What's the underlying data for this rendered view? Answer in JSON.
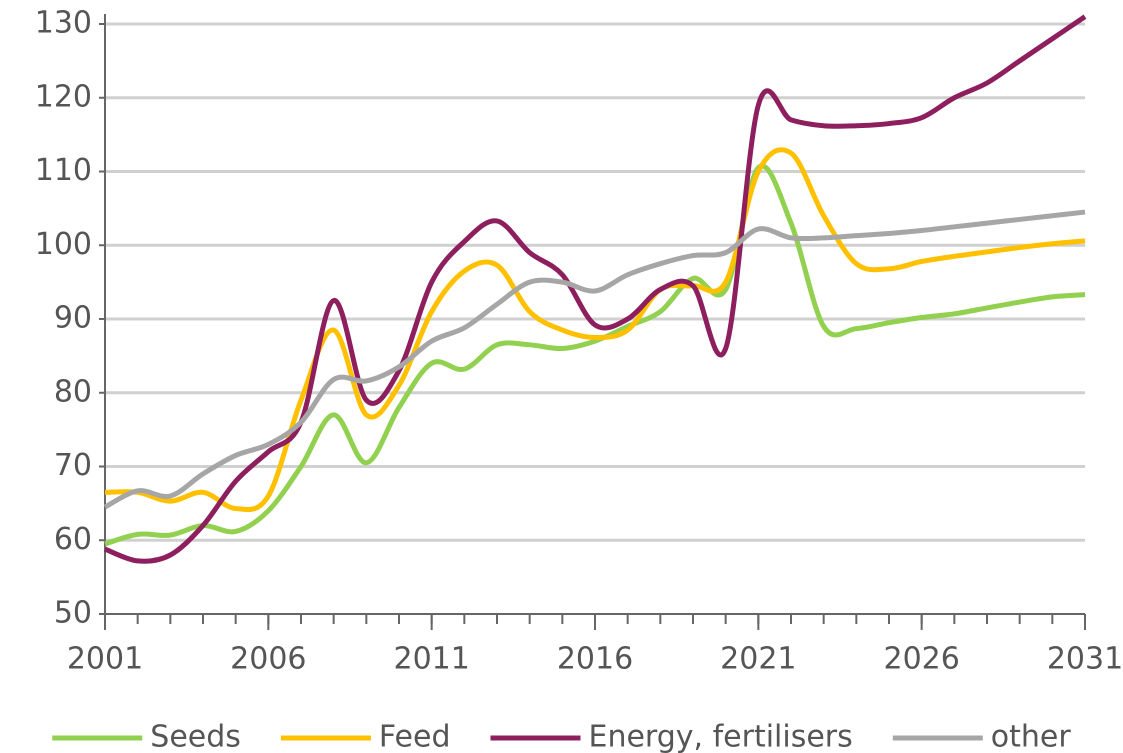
{
  "chart_data": {
    "type": "line",
    "x": [
      2001,
      2002,
      2003,
      2004,
      2005,
      2006,
      2007,
      2008,
      2009,
      2010,
      2011,
      2012,
      2013,
      2014,
      2015,
      2016,
      2017,
      2018,
      2019,
      2020,
      2021,
      2022,
      2023,
      2024,
      2025,
      2026,
      2027,
      2028,
      2029,
      2030,
      2031
    ],
    "xlim": [
      2001,
      2031
    ],
    "xticks": [
      2001,
      2006,
      2011,
      2016,
      2021,
      2026,
      2031
    ],
    "ylim": [
      50,
      130
    ],
    "yticks": [
      50,
      60,
      70,
      80,
      90,
      100,
      110,
      120,
      130
    ],
    "grid": true,
    "legend": "bottom",
    "series": [
      {
        "name": "Seeds",
        "color": "#92d050",
        "values": [
          59.5,
          60.8,
          60.7,
          62,
          61.2,
          64,
          70,
          77,
          70.5,
          78,
          84,
          83.2,
          86.5,
          86.5,
          86,
          87,
          89,
          91,
          95.5,
          94,
          110.5,
          103,
          89,
          88.7,
          89.5,
          90.2,
          90.7,
          91.5,
          92.3,
          93,
          93.3
        ]
      },
      {
        "name": "Feed",
        "color": "#ffc000",
        "values": [
          66.5,
          66.5,
          65.3,
          66.5,
          64.3,
          66,
          79,
          88.5,
          77,
          81,
          91,
          96.5,
          97.3,
          91,
          88.5,
          87.5,
          88.5,
          94,
          94.5,
          95,
          110,
          112.5,
          104,
          97.5,
          96.8,
          97.8,
          98.5,
          99.1,
          99.7,
          100.2,
          100.6
        ]
      },
      {
        "name": "Energy, fertilisers",
        "color": "#8e1f5f",
        "values": [
          58.8,
          57.2,
          58,
          62,
          68,
          72,
          76,
          92.5,
          79,
          83,
          95,
          100.5,
          103.3,
          99,
          96,
          89.2,
          90,
          94,
          94.5,
          86,
          119,
          117,
          116.2,
          116.2,
          116.5,
          117.3,
          120,
          122,
          125,
          128,
          131
        ]
      },
      {
        "name": "other",
        "color": "#a6a6a6",
        "values": [
          64.5,
          66.7,
          66,
          69,
          71.5,
          73,
          76,
          81.8,
          81.6,
          83.5,
          87,
          88.8,
          92,
          95,
          95,
          93.8,
          96,
          97.5,
          98.6,
          99,
          102.2,
          101,
          101,
          101.3,
          101.6,
          102,
          102.5,
          103,
          103.5,
          104,
          104.5
        ]
      }
    ]
  }
}
